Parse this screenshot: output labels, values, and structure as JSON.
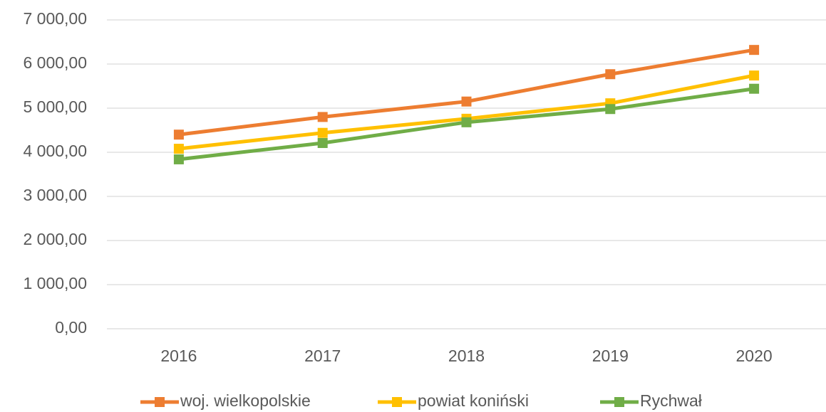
{
  "chart_data": {
    "type": "line",
    "categories": [
      "2016",
      "2017",
      "2018",
      "2019",
      "2020"
    ],
    "series": [
      {
        "name": "woj. wielkopolskie",
        "color": "#ed7d31",
        "values": [
          4400,
          4800,
          5150,
          5770,
          6320
        ]
      },
      {
        "name": "powiat koniński",
        "color": "#ffc000",
        "values": [
          4080,
          4440,
          4760,
          5110,
          5740
        ]
      },
      {
        "name": "Rychwał",
        "color": "#70ad47",
        "values": [
          3840,
          4210,
          4680,
          4980,
          5440
        ]
      }
    ],
    "ylim": [
      0,
      7000
    ],
    "yticks": [
      {
        "value": 0,
        "label": "0,00"
      },
      {
        "value": 1000,
        "label": "1 000,00"
      },
      {
        "value": 2000,
        "label": "2 000,00"
      },
      {
        "value": 3000,
        "label": "3 000,00"
      },
      {
        "value": 4000,
        "label": "4 000,00"
      },
      {
        "value": 5000,
        "label": "5 000,00"
      },
      {
        "value": 6000,
        "label": "6 000,00"
      },
      {
        "value": 7000,
        "label": "7 000,00"
      }
    ],
    "grid": true,
    "legend": "bottom"
  }
}
